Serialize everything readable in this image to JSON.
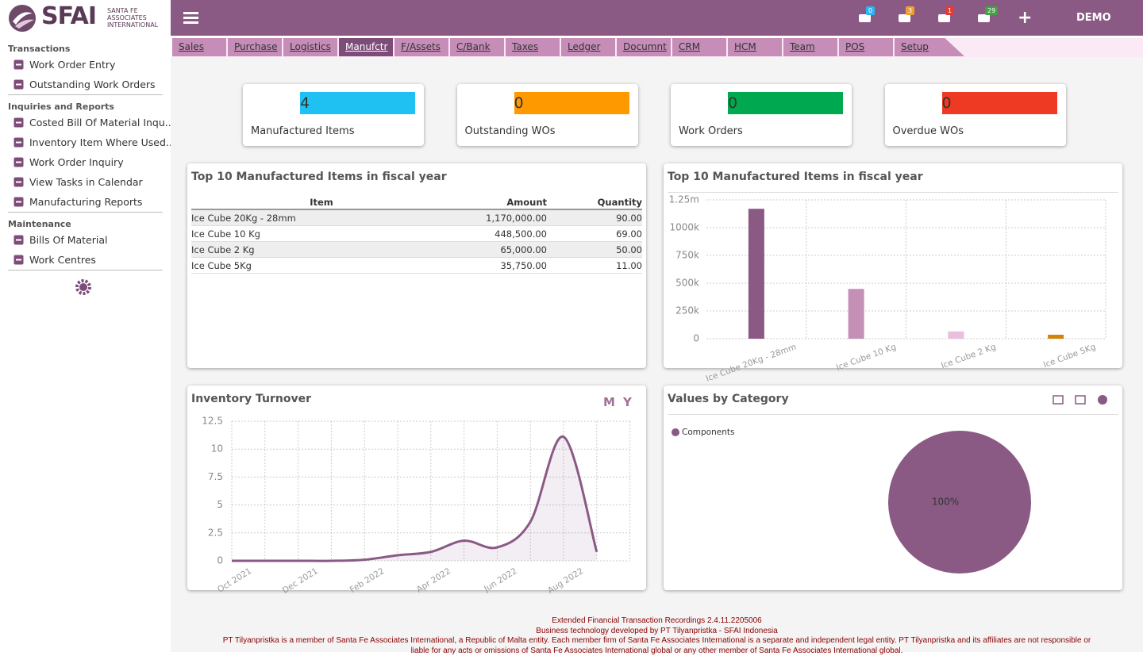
{
  "logo": {
    "name": "SFAI",
    "tagline": [
      "SANTA FE",
      "ASSOCIATES",
      "INTERNATIONAL"
    ]
  },
  "header": {
    "badges": [
      0,
      3,
      1,
      29
    ],
    "plus": "+",
    "user": "DEMO"
  },
  "tabs": [
    "Sales",
    "Purchase",
    "Logistics",
    "Manufctr",
    "F/Assets",
    "C/Bank",
    "Taxes",
    "Ledger",
    "Documnt",
    "CRM",
    "HCM",
    "Team",
    "POS",
    "Setup"
  ],
  "active_tab": 3,
  "sidebar": [
    {
      "heading": "Transactions",
      "items": [
        "Work Order Entry",
        "Outstanding Work Orders"
      ]
    },
    {
      "heading": "Inquiries and Reports",
      "items": [
        "Costed Bill Of Material Inqu...",
        "Inventory Item Where Used...",
        "Work Order Inquiry",
        "View Tasks in Calendar",
        "Manufacturing Reports"
      ]
    },
    {
      "heading": "Maintenance",
      "items": [
        "Bills Of Material",
        "Work Centres"
      ]
    }
  ],
  "kpis": [
    {
      "value": 4,
      "label": "Manufactured Items",
      "color": "#1fc1f2"
    },
    {
      "value": 0,
      "label": "Outstanding WOs",
      "color": "#ff9900"
    },
    {
      "value": 0,
      "label": "Work Orders",
      "color": "#00a950"
    },
    {
      "value": 0,
      "label": "Overdue WOs",
      "color": "#ee3a22"
    }
  ],
  "table": {
    "title": "Top 10 Manufactured Items in fiscal year",
    "columns": [
      "Item",
      "Amount",
      "Quantity"
    ],
    "rows": [
      [
        "Ice Cube 20Kg - 28mm",
        "1,170,000.00",
        "90.00"
      ],
      [
        "Ice Cube 10 Kg",
        "448,500.00",
        "69.00"
      ],
      [
        "Ice Cube 2 Kg",
        "65,000.00",
        "50.00"
      ],
      [
        "Ice Cube 5Kg",
        "35,750.00",
        "11.00"
      ]
    ]
  },
  "chart_data": [
    {
      "type": "bar",
      "title": "Top 10 Manufactured Items in fiscal year",
      "categories": [
        "Ice Cube 20Kg - 28mm",
        "Ice Cube 10 Kg",
        "Ice Cube 2 Kg",
        "Ice Cube 5Kg"
      ],
      "values": [
        1170000,
        448500,
        65000,
        35750
      ],
      "colors": [
        "#8a5a85",
        "#c490b5",
        "#e8bfdc",
        "#d4820a"
      ],
      "ylim": [
        0,
        1250000
      ],
      "yticks": [
        0,
        {
          "value": 250000,
          "label": "250k"
        },
        {
          "value": 500000,
          "label": "500k"
        },
        {
          "value": 750000,
          "label": "750k"
        },
        {
          "value": 1000000,
          "label": "1000k"
        },
        {
          "value": 1250000,
          "label": "1.25m"
        }
      ],
      "grid": true
    },
    {
      "type": "line",
      "title": "Inventory Turnover",
      "buttons": [
        "M",
        "Y"
      ],
      "categories": [
        "Oct 2021",
        null,
        "Dec 2021",
        null,
        "Feb 2022",
        null,
        "Apr 2022",
        null,
        "Jun 2022",
        null,
        "Aug 2022",
        null
      ],
      "values": [
        0,
        0,
        0,
        0,
        0.1,
        0.5,
        0.8,
        1.8,
        1.2,
        3.5,
        11.1,
        0.8
      ],
      "color": "#8a5a85",
      "ylim": [
        0,
        12.5
      ],
      "yticks": [
        0,
        2.5,
        5,
        7.5,
        10,
        12.5
      ],
      "grid": true
    },
    {
      "type": "pie",
      "title": "Values by Category",
      "categories": [
        "Components"
      ],
      "values": [
        100
      ],
      "value_labels": [
        "100%"
      ],
      "colors": [
        "#8a5a85"
      ]
    }
  ],
  "footer": [
    "Extended Financial Transaction Recordings 2.4.11.2205006",
    "Business technology developed by PT Tilyanpristka - SFAI Indonesia",
    "PT Tilyanpristka is a member of Santa Fe Associates International, a Republic of Malta entity. Each member firm of Santa Fe Associates International is a separate and independent legal entity. PT Tilyanpristka and its affiliates are not responsible or",
    "liable for any acts or omissions of Santa Fe Associates International global or any other member of Santa Fe Associates International global."
  ]
}
